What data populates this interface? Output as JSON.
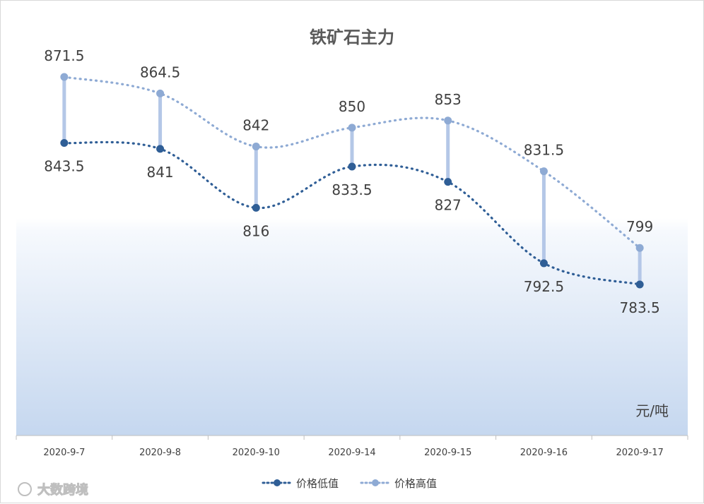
{
  "chart_data": {
    "type": "line",
    "title": "铁矿石主力",
    "unit_label": "元/吨",
    "categories": [
      "2020-9-7",
      "2020-9-8",
      "2020-9-10",
      "2020-9-14",
      "2020-9-15",
      "2020-9-16",
      "2020-9-17"
    ],
    "series": [
      {
        "name": "价格低值",
        "values": [
          843.5,
          841,
          816,
          833.5,
          827,
          792.5,
          783.5
        ],
        "labels": [
          "843.5",
          "841",
          "816",
          "833.5",
          "827",
          "792.5",
          "783.5"
        ],
        "color": "#2f5e96"
      },
      {
        "name": "价格高值",
        "values": [
          871.5,
          864.5,
          842,
          850,
          853,
          831.5,
          799
        ],
        "labels": [
          "871.5",
          "864.5",
          "842",
          "850",
          "853",
          "831.5",
          "799"
        ],
        "color": "#8eaad4"
      }
    ],
    "high_low_lines": true,
    "legend_position": "bottom",
    "grid": false
  },
  "watermark": "大数跨境",
  "colors": {
    "hilo_line": "#b4c7e7",
    "bg_gradient_top": "#ffffff",
    "bg_gradient_bottom": "#c5d7ef",
    "axis": "#bfbfbf"
  }
}
